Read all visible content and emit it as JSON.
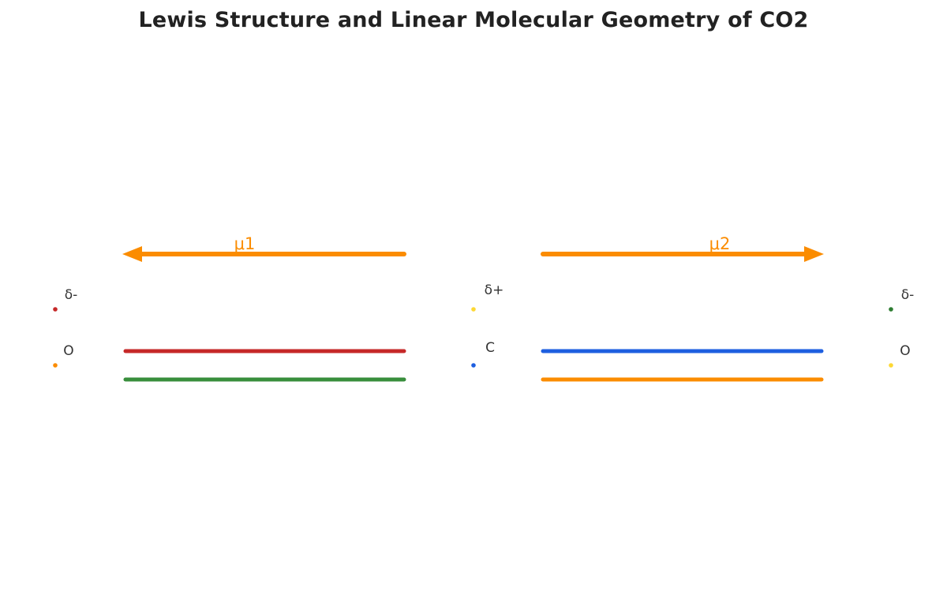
{
  "title": "Lewis Structure and Linear Molecular Geometry of CO2",
  "atoms": [
    {
      "symbol": "O",
      "charge": "δ-",
      "charge_dot_color": "#c62828",
      "atom_dot_color": "#fb8c00"
    },
    {
      "symbol": "C",
      "charge": "δ+",
      "charge_dot_color": "#fdd835",
      "atom_dot_color": "#1e5fe0"
    },
    {
      "symbol": "O",
      "charge": "δ-",
      "charge_dot_color": "#2e7d32",
      "atom_dot_color": "#fdd835"
    }
  ],
  "bonds": [
    {
      "name": "left-double-bond",
      "line_colors": [
        "#c62828",
        "#388e3c"
      ]
    },
    {
      "name": "right-double-bond",
      "line_colors": [
        "#1e5fe0",
        "#fb8c00"
      ]
    }
  ],
  "dipoles": [
    {
      "label": "μ1",
      "direction": "left",
      "color": "#fb8c00"
    },
    {
      "label": "μ2",
      "direction": "right",
      "color": "#fb8c00"
    }
  ]
}
